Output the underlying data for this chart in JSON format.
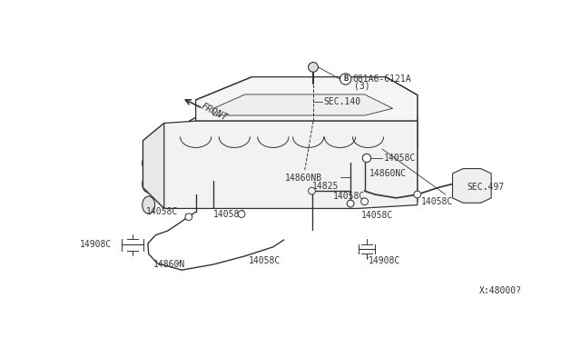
{
  "background_color": "#ffffff",
  "line_color": "#333333",
  "fig_width": 6.4,
  "fig_height": 3.72,
  "dpi": 100,
  "watermark": "X:48000?",
  "label_081A6": "081A6-6121A",
  "label_3": "(3)",
  "label_SEC140": "SEC.140",
  "label_14860NB": "14860NB",
  "label_14860NC": "14860NC",
  "label_14058C": "14058C",
  "label_14825": "14825",
  "label_SEC497": "SEC.497",
  "label_14908C": "14908C",
  "label_14860N": "14860N",
  "label_FRONT": "FRONT"
}
